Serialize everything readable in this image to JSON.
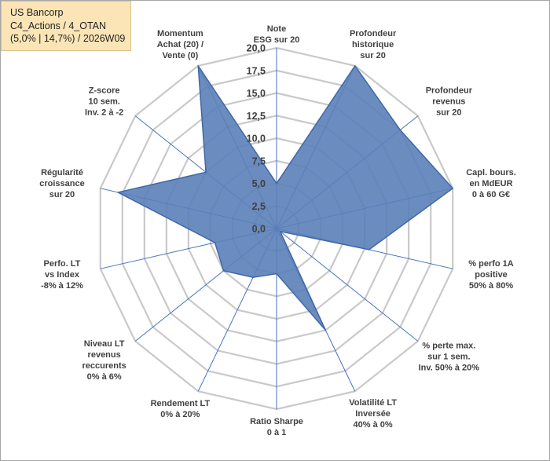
{
  "header": {
    "line1": "US Bancorp",
    "line2": "C4_Actions / 4_OTAN",
    "line3": "(5,0% | 14,7%) / 2026W09"
  },
  "chart_data": {
    "type": "radar",
    "title": "",
    "range": [
      0,
      20
    ],
    "ticks": [
      "0,0",
      "2,5",
      "5,0",
      "7,5",
      "10,0",
      "12,5",
      "15,0",
      "17,5",
      "20,0"
    ],
    "axes": [
      [
        "Note",
        "ESG sur 20"
      ],
      [
        "Profondeur",
        "historique",
        "sur 20"
      ],
      [
        "Profondeur",
        "revenus",
        "sur 20"
      ],
      [
        "Capl. bours.",
        "en MdEUR",
        "0 à 60 G€"
      ],
      [
        "% perfo 1A",
        "positive",
        "50% à 80%"
      ],
      [
        "% perte max.",
        "sur 1 sem.",
        "Inv. 50% à 20%"
      ],
      [
        "Volatilité LT",
        "Inversée",
        "40% à 0%"
      ],
      [
        "Ratio Sharpe",
        "0 à 1"
      ],
      [
        "Rendement LT",
        "0% à 20%"
      ],
      [
        "Niveau LT",
        "revenus",
        "reccurents",
        "0% à 6%"
      ],
      [
        "Perfo. LT",
        "vs Index",
        "-8% à 12%"
      ],
      [
        "Régularité",
        "croissance",
        "sur 20"
      ],
      [
        "Z-score",
        "10 sem.",
        "Inv. 2 à -2"
      ],
      [
        "Momentum",
        "Achat (20) /",
        "Vente (0)"
      ]
    ],
    "values": [
      5.0,
      20.0,
      17.5,
      20.0,
      10.5,
      0.5,
      12.5,
      5.0,
      6.0,
      7.5,
      7.0,
      18.0,
      10.0,
      20.0
    ],
    "colors": {
      "fill": "#5b7fb8",
      "stroke": "#3e68a8",
      "grid": "#c9c9c9",
      "spoke": "#4472c4"
    }
  }
}
